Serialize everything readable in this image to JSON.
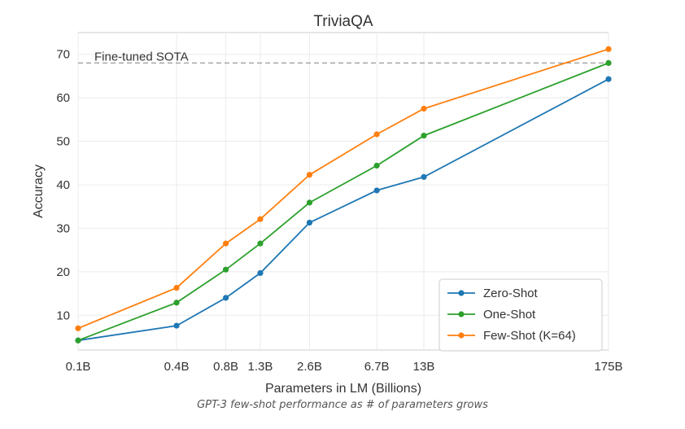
{
  "chart_data": {
    "type": "line",
    "title": "TriviaQA",
    "xlabel": "Parameters in LM (Billions)",
    "ylabel": "Accuracy",
    "x_scale": "log",
    "x_values": [
      0.1,
      0.4,
      0.8,
      1.3,
      2.6,
      6.7,
      13,
      175
    ],
    "categories": [
      "0.1B",
      "0.4B",
      "0.8B",
      "1.3B",
      "2.6B",
      "6.7B",
      "13B",
      "175B"
    ],
    "ylim": [
      2,
      75
    ],
    "yticks": [
      10,
      20,
      30,
      40,
      50,
      60,
      70
    ],
    "grid": true,
    "legend_position": "bottom-right",
    "series": [
      {
        "name": "Zero-Shot",
        "color": "#1f77b4",
        "values": [
          4.2,
          7.6,
          14.0,
          19.7,
          31.3,
          38.7,
          41.8,
          64.3
        ]
      },
      {
        "name": "One-Shot",
        "color": "#2ca02c",
        "values": [
          4.2,
          12.9,
          20.5,
          26.5,
          35.9,
          44.4,
          51.3,
          68.0
        ]
      },
      {
        "name": "Few-Shot (K=64)",
        "color": "#ff7f0e",
        "values": [
          7.0,
          16.3,
          26.5,
          32.1,
          42.3,
          51.6,
          57.5,
          71.2
        ]
      }
    ],
    "reference_line": {
      "label": "Fine-tuned SOTA",
      "value": 68,
      "color": "#999999"
    }
  },
  "caption": "GPT-3 few-shot performance as # of parameters grows"
}
